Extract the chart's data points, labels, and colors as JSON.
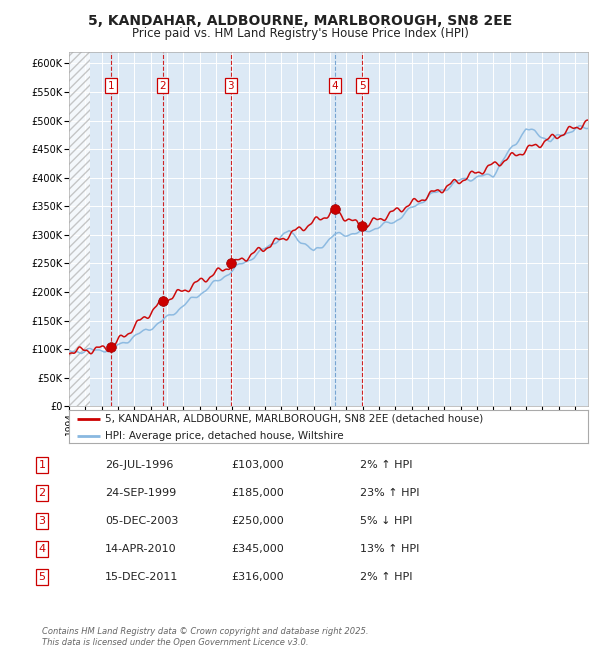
{
  "title": "5, KANDAHAR, ALDBOURNE, MARLBOROUGH, SN8 2EE",
  "subtitle": "Price paid vs. HM Land Registry's House Price Index (HPI)",
  "title_fontsize": 10,
  "subtitle_fontsize": 8.5,
  "background_color": "#ffffff",
  "plot_bg_color": "#dce9f5",
  "grid_color": "#ffffff",
  "hpi_line_color": "#89b8e0",
  "price_line_color": "#cc0000",
  "sale_marker_color": "#cc0000",
  "vline_colors_red": "#cc0000",
  "vline_color_blue": "#6699cc",
  "sales": [
    {
      "label": "1",
      "date_num": 1996.57,
      "price": 103000,
      "date_str": "26-JUL-1996",
      "hpi_pct": "2% ↑ HPI"
    },
    {
      "label": "2",
      "date_num": 1999.73,
      "price": 185000,
      "date_str": "24-SEP-1999",
      "hpi_pct": "23% ↑ HPI"
    },
    {
      "label": "3",
      "date_num": 2003.92,
      "price": 250000,
      "date_str": "05-DEC-2003",
      "hpi_pct": "5% ↓ HPI"
    },
    {
      "label": "4",
      "date_num": 2010.28,
      "price": 345000,
      "date_str": "14-APR-2010",
      "hpi_pct": "13% ↑ HPI"
    },
    {
      "label": "5",
      "date_num": 2011.96,
      "price": 316000,
      "date_str": "15-DEC-2011",
      "hpi_pct": "2% ↑ HPI"
    }
  ],
  "vline_is_blue": [
    false,
    false,
    false,
    true,
    false
  ],
  "xmin": 1994.0,
  "xmax": 2025.8,
  "ymin": 0,
  "ymax": 620000,
  "yticks": [
    0,
    50000,
    100000,
    150000,
    200000,
    250000,
    300000,
    350000,
    400000,
    450000,
    500000,
    550000,
    600000
  ],
  "ytick_labels": [
    "£0",
    "£50K",
    "£100K",
    "£150K",
    "£200K",
    "£250K",
    "£300K",
    "£350K",
    "£400K",
    "£450K",
    "£500K",
    "£550K",
    "£600K"
  ],
  "legend1_label": "5, KANDAHAR, ALDBOURNE, MARLBOROUGH, SN8 2EE (detached house)",
  "legend2_label": "HPI: Average price, detached house, Wiltshire",
  "footer": "Contains HM Land Registry data © Crown copyright and database right 2025.\nThis data is licensed under the Open Government Licence v3.0.",
  "table_rows": [
    [
      "1",
      "26-JUL-1996",
      "£103,000",
      "2% ↑ HPI"
    ],
    [
      "2",
      "24-SEP-1999",
      "£185,000",
      "23% ↑ HPI"
    ],
    [
      "3",
      "05-DEC-2003",
      "£250,000",
      "5% ↓ HPI"
    ],
    [
      "4",
      "14-APR-2010",
      "£345,000",
      "13% ↑ HPI"
    ],
    [
      "5",
      "15-DEC-2011",
      "£316,000",
      "2% ↑ HPI"
    ]
  ]
}
